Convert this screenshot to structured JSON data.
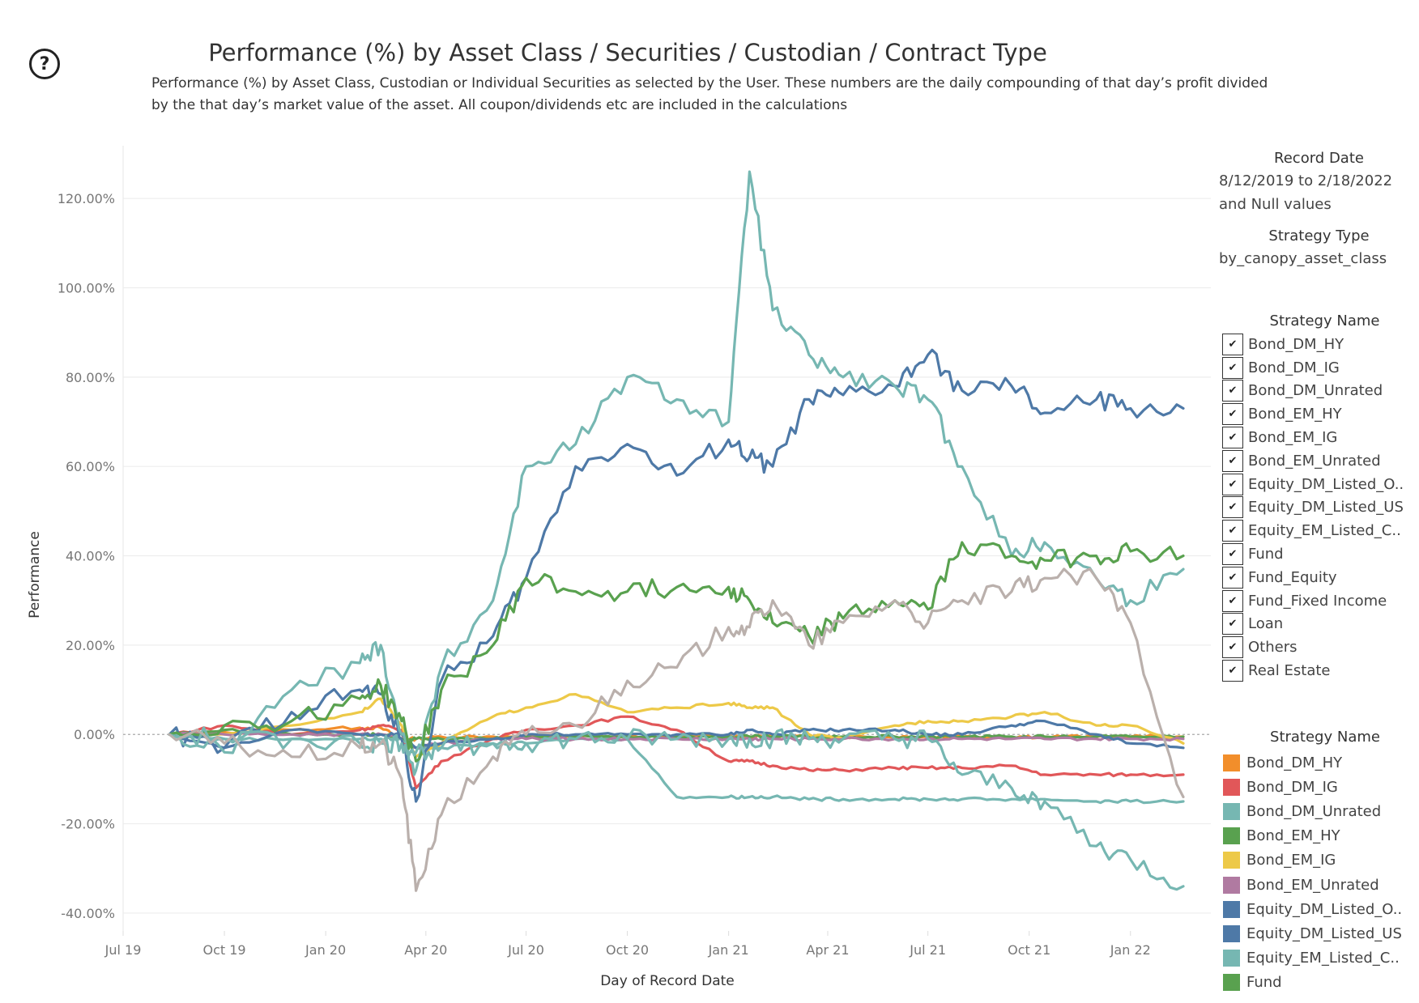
{
  "help_icon": "question-circle-icon",
  "header": {
    "title": "Performance (%) by Asset Class / Securities / Custodian / Contract Type",
    "subtitle_line1": "Performance (%) by Asset Class, Custodian or Individual Securities as selected by the User. These numbers are the daily compounding of that day’s profit divided",
    "subtitle_line2": "by the that day’s market value of the asset. All coupon/dividends etc are included in the calculations"
  },
  "filters": {
    "record_date": {
      "label": "Record Date",
      "value_line1": "8/12/2019 to 2/18/2022",
      "value_line2": "and Null values"
    },
    "strategy_type": {
      "label": "Strategy Type",
      "value": "by_canopy_asset_class"
    },
    "strategy_name_filter": {
      "label": "Strategy Name",
      "check_glyph": "✔",
      "items": [
        {
          "label": "Bond_DM_HY",
          "checked": true
        },
        {
          "label": "Bond_DM_IG",
          "checked": true
        },
        {
          "label": "Bond_DM_Unrated",
          "checked": true
        },
        {
          "label": "Bond_EM_HY",
          "checked": true
        },
        {
          "label": "Bond_EM_IG",
          "checked": true
        },
        {
          "label": "Bond_EM_Unrated",
          "checked": true
        },
        {
          "label": "Equity_DM_Listed_O..",
          "checked": true
        },
        {
          "label": "Equity_DM_Listed_US",
          "checked": true
        },
        {
          "label": "Equity_EM_Listed_C..",
          "checked": true
        },
        {
          "label": "Fund",
          "checked": true
        },
        {
          "label": "Fund_Equity",
          "checked": true
        },
        {
          "label": "Fund_Fixed Income",
          "checked": true
        },
        {
          "label": "Loan",
          "checked": true
        },
        {
          "label": "Others",
          "checked": true
        },
        {
          "label": "Real Estate",
          "checked": true
        }
      ]
    }
  },
  "color_legend": {
    "label": "Strategy Name",
    "items": [
      {
        "label": "Bond_DM_HY",
        "color": "#F28E2B"
      },
      {
        "label": "Bond_DM_IG",
        "color": "#E15759"
      },
      {
        "label": "Bond_DM_Unrated",
        "color": "#76B7B2"
      },
      {
        "label": "Bond_EM_HY",
        "color": "#59A14F"
      },
      {
        "label": "Bond_EM_IG",
        "color": "#EDC948"
      },
      {
        "label": "Bond_EM_Unrated",
        "color": "#B07AA1"
      },
      {
        "label": "Equity_DM_Listed_O..",
        "color": "#4E79A7"
      },
      {
        "label": "Equity_DM_Listed_US",
        "color": "#4E79A7"
      },
      {
        "label": "Equity_EM_Listed_C..",
        "color": "#76B7B2"
      },
      {
        "label": "Fund",
        "color": "#59A14F"
      }
    ]
  },
  "chart_data": {
    "type": "line",
    "title": "Performance (%) by Asset Class / Securities / Custodian / Contract Type",
    "xlabel": "Day of Record Date",
    "ylabel": "Performance",
    "x_ticks": [
      "Jul 19",
      "Oct 19",
      "Jan 20",
      "Apr 20",
      "Jul 20",
      "Oct 20",
      "Jan 21",
      "Apr 21",
      "Jul 21",
      "Oct 21",
      "Jan 22"
    ],
    "y_ticks": [
      "-40.00%",
      "-20.00%",
      "0.00%",
      "20.00%",
      "40.00%",
      "60.00%",
      "80.00%",
      "100.00%",
      "120.00%"
    ],
    "ylim": [
      -44,
      130
    ],
    "xlim": [
      "2019-07-01",
      "2022-03-15"
    ],
    "grid": true,
    "zero_line": "dashed",
    "legend": "right",
    "x": [
      "2019-08-12",
      "2019-10-01",
      "2019-12-01",
      "2020-02-01",
      "2020-02-20",
      "2020-03-10",
      "2020-03-23",
      "2020-04-15",
      "2020-06-01",
      "2020-07-01",
      "2020-08-15",
      "2020-10-01",
      "2020-11-15",
      "2021-01-01",
      "2021-01-20",
      "2021-02-10",
      "2021-03-15",
      "2021-04-15",
      "2021-06-01",
      "2021-07-01",
      "2021-08-01",
      "2021-09-15",
      "2021-10-15",
      "2021-12-01",
      "2022-01-01",
      "2022-02-18"
    ],
    "series": [
      {
        "name": "Bond_DM_HY",
        "color": "#F28E2B",
        "values": [
          0,
          0.5,
          1,
          1.5,
          1.5,
          -1,
          -1,
          -0.5,
          -0.5,
          -0.5,
          -0.5,
          -0.5,
          -0.5,
          -0.5,
          -0.5,
          -0.5,
          -0.5,
          -0.5,
          -0.5,
          -0.5,
          -0.5,
          -0.5,
          -0.5,
          -0.5,
          -0.5,
          -0.5
        ]
      },
      {
        "name": "Bond_DM_IG",
        "color": "#E15759",
        "values": [
          0,
          2,
          0,
          1,
          2,
          1,
          -12,
          -6,
          -1,
          1,
          2,
          4,
          1,
          -6,
          -6,
          -7,
          -8,
          -8,
          -7.5,
          -7.5,
          -7.5,
          -7,
          -9,
          -9,
          -9,
          -9
        ]
      },
      {
        "name": "Bond_DM_Unrated",
        "color": "#76B7B2",
        "values": [
          0,
          -1,
          -1,
          -1,
          -1,
          -1,
          -3,
          -3,
          -2,
          -2,
          -1,
          -1,
          -14,
          -14,
          -14,
          -14,
          -14.5,
          -14.5,
          -14.5,
          -14.5,
          -14.5,
          -14.5,
          -14.5,
          -15,
          -15,
          -15
        ]
      },
      {
        "name": "Bond_EM_HY",
        "color": "#59A14F",
        "values": [
          0,
          1,
          0,
          0,
          0,
          -1,
          -1,
          -1,
          -1,
          -0.5,
          -0.5,
          -0.5,
          -0.5,
          -0.5,
          -0.5,
          -0.5,
          -0.5,
          -0.5,
          -0.5,
          -0.5,
          -0.5,
          -0.5,
          -0.5,
          -0.5,
          -0.5,
          -0.5
        ]
      },
      {
        "name": "Bond_EM_IG",
        "color": "#EDC948",
        "values": [
          0,
          0,
          2,
          5,
          8,
          2,
          -5,
          -2,
          4,
          6,
          9,
          5,
          6,
          7,
          6,
          6,
          0,
          -1,
          2,
          3,
          3,
          4,
          5,
          2,
          2,
          -2
        ]
      },
      {
        "name": "Bond_EM_Unrated",
        "color": "#B07AA1",
        "values": [
          0,
          0,
          0,
          0,
          0,
          0,
          -3,
          -2,
          -1,
          -1,
          -1,
          -1,
          -1,
          -1,
          -1,
          -1,
          -1,
          -1,
          -1,
          -1,
          -1,
          -1,
          -1,
          -1,
          -1,
          -1
        ]
      },
      {
        "name": "Equity_DM_Listed_O..",
        "color": "#4E79A7",
        "values": [
          0,
          -3,
          5,
          10,
          9,
          -1,
          -15,
          12,
          22,
          35,
          60,
          65,
          58,
          66,
          62,
          60,
          75,
          76,
          78,
          85,
          77,
          78,
          72,
          75,
          73,
          73
        ]
      },
      {
        "name": "Equity_DM_Listed_US",
        "color": "#4E79A7",
        "values": [
          0,
          -3,
          1,
          0,
          0,
          0,
          -3,
          -2,
          -1,
          0,
          0,
          0,
          0,
          0,
          1,
          0,
          1,
          1,
          1,
          0,
          0,
          2,
          3,
          0,
          -2,
          -3
        ]
      },
      {
        "name": "Equity_EM_Listed_C..",
        "color": "#76B7B2",
        "values": [
          0,
          -4,
          10,
          16,
          20,
          0,
          -8,
          15,
          30,
          60,
          65,
          80,
          75,
          70,
          126,
          95,
          85,
          80,
          78,
          75,
          60,
          40,
          43,
          35,
          30,
          37
        ]
      },
      {
        "name": "Fund",
        "color": "#59A14F",
        "values": [
          0,
          2,
          3,
          8,
          11,
          3,
          -6,
          10,
          20,
          35,
          32,
          32,
          33,
          33,
          30,
          25,
          22,
          26,
          30,
          28,
          43,
          40,
          39,
          40,
          41,
          40
        ]
      },
      {
        "name": "Fund_Equity",
        "color": "#76B7B2",
        "values": [
          0,
          -1,
          -1,
          -2,
          -2,
          -2,
          -4,
          -3,
          -2,
          -2,
          -1,
          -1,
          -1,
          -1,
          -1,
          -1,
          -1,
          -1,
          -1,
          -1,
          -9,
          -12,
          -15,
          -25,
          -28,
          -34
        ]
      },
      {
        "name": "Others",
        "color": "#BAB0AC",
        "values": [
          0,
          -2,
          -5,
          -3,
          -2,
          -10,
          -35,
          -18,
          -5,
          0,
          2,
          12,
          15,
          24,
          24,
          30,
          20,
          25,
          30,
          25,
          30,
          32,
          35,
          35,
          25,
          -14
        ]
      }
    ]
  }
}
